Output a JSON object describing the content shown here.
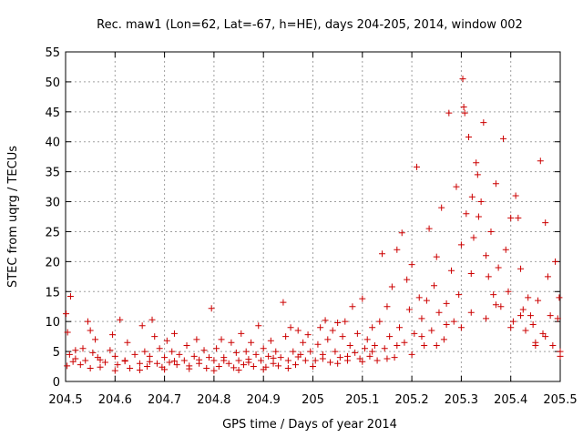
{
  "chart_data": {
    "type": "scatter",
    "title": "Rec. maw1 (Lon=62, Lat=-67, h=HE), days 204-205, 2014, window 002",
    "xlabel": "GPS time / Days of year 2014",
    "ylabel": "STEC from uqrg / TECUs",
    "xlim": [
      204.5,
      205.5
    ],
    "ylim": [
      0,
      55
    ],
    "xticks": [
      204.5,
      204.6,
      204.7,
      204.8,
      204.9,
      205.0,
      205.1,
      205.2,
      205.3,
      205.4,
      205.5
    ],
    "xtick_labels": [
      "204.5",
      "204.6",
      "204.7",
      "204.8",
      "204.9",
      "205",
      "205.1",
      "205.2",
      "205.3",
      "205.4",
      "205.5"
    ],
    "yticks": [
      0,
      5,
      10,
      15,
      20,
      25,
      30,
      35,
      40,
      45,
      50,
      55
    ],
    "ytick_labels": [
      "0",
      "5",
      "10",
      "15",
      "20",
      "25",
      "30",
      "35",
      "40",
      "45",
      "50",
      "55"
    ],
    "grid": true,
    "marker": "+",
    "color": "#cc0000",
    "series": [
      {
        "name": "STEC",
        "points": [
          [
            204.501,
            11.3
          ],
          [
            204.504,
            8.2
          ],
          [
            204.51,
            14.2
          ],
          [
            204.508,
            4.5
          ],
          [
            204.52,
            5.2
          ],
          [
            204.503,
            2.6
          ],
          [
            204.515,
            3.3
          ],
          [
            204.53,
            2.8
          ],
          [
            204.54,
            3.5
          ],
          [
            204.545,
            10.0
          ],
          [
            204.55,
            8.5
          ],
          [
            204.56,
            7.0
          ],
          [
            204.535,
            5.5
          ],
          [
            204.555,
            4.8
          ],
          [
            204.565,
            4.0
          ],
          [
            204.57,
            2.4
          ],
          [
            204.58,
            3.2
          ],
          [
            204.59,
            5.2
          ],
          [
            204.595,
            7.8
          ],
          [
            204.6,
            4.2
          ],
          [
            204.605,
            2.8
          ],
          [
            204.61,
            10.3
          ],
          [
            204.62,
            3.5
          ],
          [
            204.625,
            6.5
          ],
          [
            204.63,
            2.2
          ],
          [
            204.64,
            4.5
          ],
          [
            204.65,
            3.0
          ],
          [
            204.655,
            9.3
          ],
          [
            204.66,
            5.0
          ],
          [
            204.665,
            2.5
          ],
          [
            204.67,
            4.2
          ],
          [
            204.675,
            10.3
          ],
          [
            204.68,
            7.5
          ],
          [
            204.685,
            3.0
          ],
          [
            204.69,
            5.5
          ],
          [
            204.695,
            2.4
          ],
          [
            204.7,
            4.0
          ],
          [
            204.705,
            6.8
          ],
          [
            204.71,
            3.2
          ],
          [
            204.715,
            5.0
          ],
          [
            204.72,
            8.0
          ],
          [
            204.725,
            2.8
          ],
          [
            204.73,
            4.5
          ],
          [
            204.74,
            3.5
          ],
          [
            204.745,
            6.0
          ],
          [
            204.75,
            2.6
          ],
          [
            204.76,
            4.2
          ],
          [
            204.765,
            7.0
          ],
          [
            204.77,
            3.0
          ],
          [
            204.78,
            5.2
          ],
          [
            204.785,
            2.2
          ],
          [
            204.79,
            4.0
          ],
          [
            204.795,
            12.2
          ],
          [
            204.8,
            3.5
          ],
          [
            204.805,
            5.5
          ],
          [
            204.81,
            2.5
          ],
          [
            204.815,
            7.0
          ],
          [
            204.82,
            4.0
          ],
          [
            204.83,
            3.0
          ],
          [
            204.835,
            6.5
          ],
          [
            204.84,
            2.3
          ],
          [
            204.845,
            4.8
          ],
          [
            204.85,
            3.5
          ],
          [
            204.855,
            8.0
          ],
          [
            204.86,
            2.8
          ],
          [
            204.865,
            5.0
          ],
          [
            204.87,
            3.2
          ],
          [
            204.875,
            6.5
          ],
          [
            204.88,
            2.5
          ],
          [
            204.885,
            4.5
          ],
          [
            204.89,
            9.3
          ],
          [
            204.895,
            3.5
          ],
          [
            204.9,
            5.5
          ],
          [
            204.905,
            2.4
          ],
          [
            204.91,
            4.2
          ],
          [
            204.915,
            6.8
          ],
          [
            204.92,
            3.0
          ],
          [
            204.925,
            5.0
          ],
          [
            204.93,
            2.6
          ],
          [
            204.935,
            4.0
          ],
          [
            204.94,
            13.2
          ],
          [
            204.945,
            7.5
          ],
          [
            204.95,
            3.5
          ],
          [
            204.955,
            9.0
          ],
          [
            204.96,
            5.0
          ],
          [
            204.965,
            2.8
          ],
          [
            204.97,
            8.5
          ],
          [
            204.975,
            4.5
          ],
          [
            204.98,
            6.5
          ],
          [
            204.985,
            3.5
          ],
          [
            204.99,
            7.8
          ],
          [
            204.995,
            5.0
          ],
          [
            204.55,
            2.2
          ],
          [
            204.6,
            1.8
          ],
          [
            204.65,
            1.9
          ],
          [
            204.7,
            2.0
          ],
          [
            204.75,
            2.1
          ],
          [
            204.8,
            1.8
          ],
          [
            204.85,
            1.9
          ],
          [
            204.9,
            2.0
          ],
          [
            204.95,
            2.2
          ],
          [
            204.52,
            3.8
          ],
          [
            204.57,
            3.6
          ],
          [
            204.62,
            3.4
          ],
          [
            204.67,
            3.3
          ],
          [
            204.72,
            3.4
          ],
          [
            204.77,
            3.6
          ],
          [
            204.82,
            3.5
          ],
          [
            204.87,
            3.7
          ],
          [
            204.92,
            3.9
          ],
          [
            204.97,
            4.1
          ],
          [
            205.005,
            3.5
          ],
          [
            205.01,
            6.2
          ],
          [
            205.015,
            9.0
          ],
          [
            205.02,
            4.5
          ],
          [
            205.025,
            10.2
          ],
          [
            205.03,
            7.0
          ],
          [
            205.035,
            3.2
          ],
          [
            205.04,
            8.5
          ],
          [
            205.045,
            5.0
          ],
          [
            205.05,
            9.8
          ],
          [
            205.055,
            4.0
          ],
          [
            205.06,
            7.5
          ],
          [
            205.065,
            10.0
          ],
          [
            205.07,
            3.5
          ],
          [
            205.075,
            6.0
          ],
          [
            205.08,
            12.5
          ],
          [
            205.085,
            4.8
          ],
          [
            205.09,
            8.0
          ],
          [
            205.095,
            3.8
          ],
          [
            205.1,
            13.8
          ],
          [
            205.105,
            5.5
          ],
          [
            205.11,
            7.0
          ],
          [
            205.115,
            4.2
          ],
          [
            205.12,
            9.0
          ],
          [
            205.125,
            6.0
          ],
          [
            205.13,
            3.5
          ],
          [
            205.135,
            10.0
          ],
          [
            205.14,
            21.3
          ],
          [
            205.145,
            5.5
          ],
          [
            205.15,
            12.5
          ],
          [
            205.155,
            7.5
          ],
          [
            205.16,
            15.8
          ],
          [
            205.165,
            4.0
          ],
          [
            205.17,
            22.0
          ],
          [
            205.175,
            9.0
          ],
          [
            205.18,
            24.8
          ],
          [
            205.185,
            6.5
          ],
          [
            205.19,
            17.0
          ],
          [
            205.195,
            12.0
          ],
          [
            205.2,
            19.5
          ],
          [
            205.205,
            8.0
          ],
          [
            205.21,
            35.8
          ],
          [
            205.215,
            14.0
          ],
          [
            205.22,
            10.5
          ],
          [
            205.225,
            6.0
          ],
          [
            205.23,
            13.5
          ],
          [
            205.235,
            25.5
          ],
          [
            205.24,
            8.5
          ],
          [
            205.245,
            16.0
          ],
          [
            205.25,
            20.8
          ],
          [
            205.255,
            11.5
          ],
          [
            205.26,
            29.0
          ],
          [
            205.265,
            7.0
          ],
          [
            205.27,
            13.0
          ],
          [
            205.275,
            44.8
          ],
          [
            205.28,
            18.5
          ],
          [
            205.285,
            10.0
          ],
          [
            205.29,
            32.5
          ],
          [
            205.295,
            14.5
          ],
          [
            205.3,
            22.8
          ],
          [
            205.303,
            50.5
          ],
          [
            205.305,
            45.8
          ],
          [
            205.307,
            44.8
          ],
          [
            205.31,
            28.0
          ],
          [
            205.315,
            40.8
          ],
          [
            205.32,
            18.0
          ],
          [
            205.322,
            30.8
          ],
          [
            205.325,
            24.0
          ],
          [
            205.33,
            36.5
          ],
          [
            205.333,
            34.5
          ],
          [
            205.335,
            27.5
          ],
          [
            205.34,
            30.0
          ],
          [
            205.345,
            43.2
          ],
          [
            205.35,
            21.0
          ],
          [
            205.355,
            17.5
          ],
          [
            205.36,
            25.0
          ],
          [
            205.365,
            14.5
          ],
          [
            205.37,
            33.0
          ],
          [
            205.375,
            19.0
          ],
          [
            205.38,
            12.5
          ],
          [
            205.385,
            40.5
          ],
          [
            205.39,
            22.0
          ],
          [
            205.395,
            15.0
          ],
          [
            205.4,
            27.3
          ],
          [
            205.405,
            10.0
          ],
          [
            205.41,
            31.0
          ],
          [
            205.415,
            27.3
          ],
          [
            205.42,
            18.8
          ],
          [
            205.425,
            12.0
          ],
          [
            205.43,
            8.5
          ],
          [
            205.435,
            14.0
          ],
          [
            205.44,
            11.0
          ],
          [
            205.445,
            9.5
          ],
          [
            205.45,
            6.5
          ],
          [
            205.455,
            13.5
          ],
          [
            205.46,
            36.8
          ],
          [
            205.465,
            8.0
          ],
          [
            205.47,
            26.5
          ],
          [
            205.475,
            17.5
          ],
          [
            205.48,
            11.0
          ],
          [
            205.485,
            6.0
          ],
          [
            205.49,
            20.0
          ],
          [
            205.495,
            10.5
          ],
          [
            205.498,
            14.0
          ],
          [
            205.5,
            5.0
          ],
          [
            205.0,
            2.5
          ],
          [
            205.05,
            3.0
          ],
          [
            205.1,
            3.3
          ],
          [
            205.15,
            3.8
          ],
          [
            205.2,
            4.5
          ],
          [
            205.25,
            6.0
          ],
          [
            205.3,
            9.0
          ],
          [
            205.35,
            10.5
          ],
          [
            205.4,
            9.0
          ],
          [
            205.45,
            6.0
          ],
          [
            205.5,
            4.2
          ],
          [
            205.02,
            3.8
          ],
          [
            205.07,
            4.2
          ],
          [
            205.12,
            5.0
          ],
          [
            205.17,
            6.0
          ],
          [
            205.22,
            7.5
          ],
          [
            205.27,
            9.5
          ],
          [
            205.32,
            11.5
          ],
          [
            205.37,
            12.8
          ],
          [
            205.42,
            11.0
          ],
          [
            205.47,
            7.5
          ]
        ]
      }
    ]
  }
}
